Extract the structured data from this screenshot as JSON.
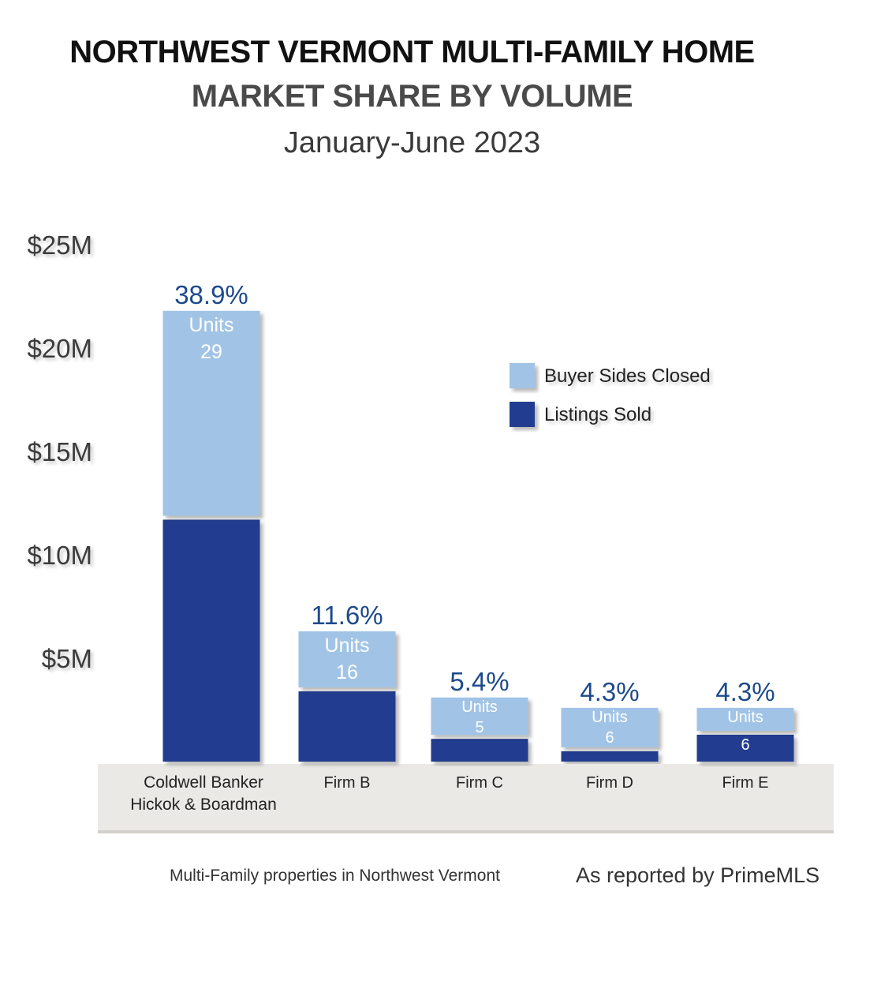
{
  "title": "NORTHWEST VERMONT MULTI-FAMILY HOME",
  "subtitle": "MARKET SHARE BY VOLUME",
  "period": "January-June 2023",
  "footnote_left": "Multi-Family properties in Northwest Vermont",
  "footnote_right": "As reported by PrimeMLS",
  "chart_data": {
    "type": "bar",
    "stacked": true,
    "categories": [
      "Coldwell Banker\nHickok & Boardman",
      "Firm B",
      "Firm C",
      "Firm D",
      "Firm E"
    ],
    "series": [
      {
        "name": "Listings Sold",
        "color": "#243c8f",
        "values": [
          11.7,
          3.4,
          1.1,
          0.5,
          1.3
        ]
      },
      {
        "name": "Buyer Sides Closed",
        "color": "#a1c4e6",
        "values": [
          10.1,
          2.9,
          2.0,
          2.1,
          1.3
        ]
      }
    ],
    "share_labels": [
      "38.9%",
      "11.6%",
      "5.4%",
      "4.3%",
      "4.3%"
    ],
    "units_label": "Units",
    "units": [
      "29",
      "16",
      "5",
      "6",
      "6"
    ],
    "y_ticks": [
      "$5M",
      "$10M",
      "$15M",
      "$20M",
      "$25M"
    ],
    "y_tick_values": [
      5,
      10,
      15,
      20,
      25
    ],
    "ylim": [
      0,
      25
    ],
    "legend_position": "upper-right",
    "colors": {
      "bar_label": "#1d4a8c",
      "axis_band": "#ebe9e6",
      "tick_text": "#3a3a3a"
    }
  }
}
